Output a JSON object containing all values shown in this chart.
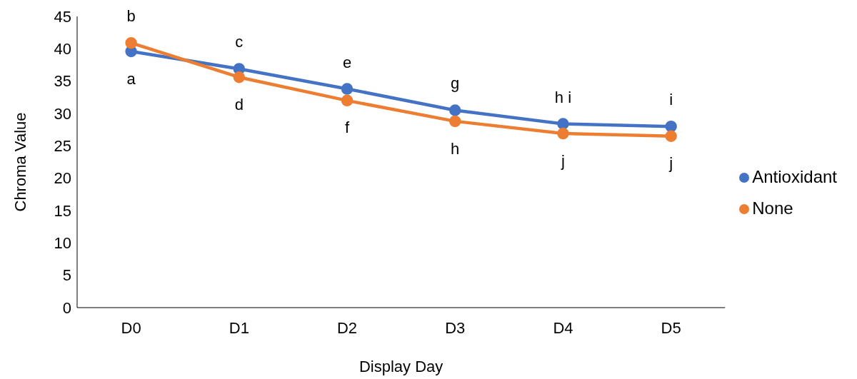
{
  "chart_data": {
    "type": "line",
    "xlabel": "Display Day",
    "ylabel": "Chroma Value",
    "categories": [
      "D0",
      "D1",
      "D2",
      "D3",
      "D4",
      "D5"
    ],
    "series": [
      {
        "name": "Antioxidant",
        "color": "#4472c4",
        "values": [
          39.6,
          36.9,
          33.8,
          30.5,
          28.4,
          28.0
        ]
      },
      {
        "name": "None",
        "color": "#ed7d31",
        "values": [
          40.9,
          35.6,
          32.0,
          28.8,
          26.9,
          26.5
        ]
      }
    ],
    "ylim": [
      0,
      45
    ],
    "yticks": [
      0,
      5,
      10,
      15,
      20,
      25,
      30,
      35,
      40,
      45
    ],
    "grid": false,
    "legend": "right",
    "marker": "circle",
    "line_style": "solid",
    "annotations": [
      {
        "text": "b",
        "x": "D0",
        "y": 40.9
      },
      {
        "text": "a",
        "x": "D0",
        "y": 39.6
      },
      {
        "text": "c",
        "x": "D1",
        "y": 36.9
      },
      {
        "text": "d",
        "x": "D1",
        "y": 35.6
      },
      {
        "text": "e",
        "x": "D2",
        "y": 33.8
      },
      {
        "text": "f",
        "x": "D2",
        "y": 32.0
      },
      {
        "text": "g",
        "x": "D3",
        "y": 30.5
      },
      {
        "text": "h",
        "x": "D3",
        "y": 28.8
      },
      {
        "text": "h i",
        "x": "D4",
        "y": 28.4
      },
      {
        "text": "j",
        "x": "D4",
        "y": 26.9
      },
      {
        "text": "i",
        "x": "D5",
        "y": 28.0
      },
      {
        "text": "j",
        "x": "D5",
        "y": 26.5
      }
    ]
  }
}
